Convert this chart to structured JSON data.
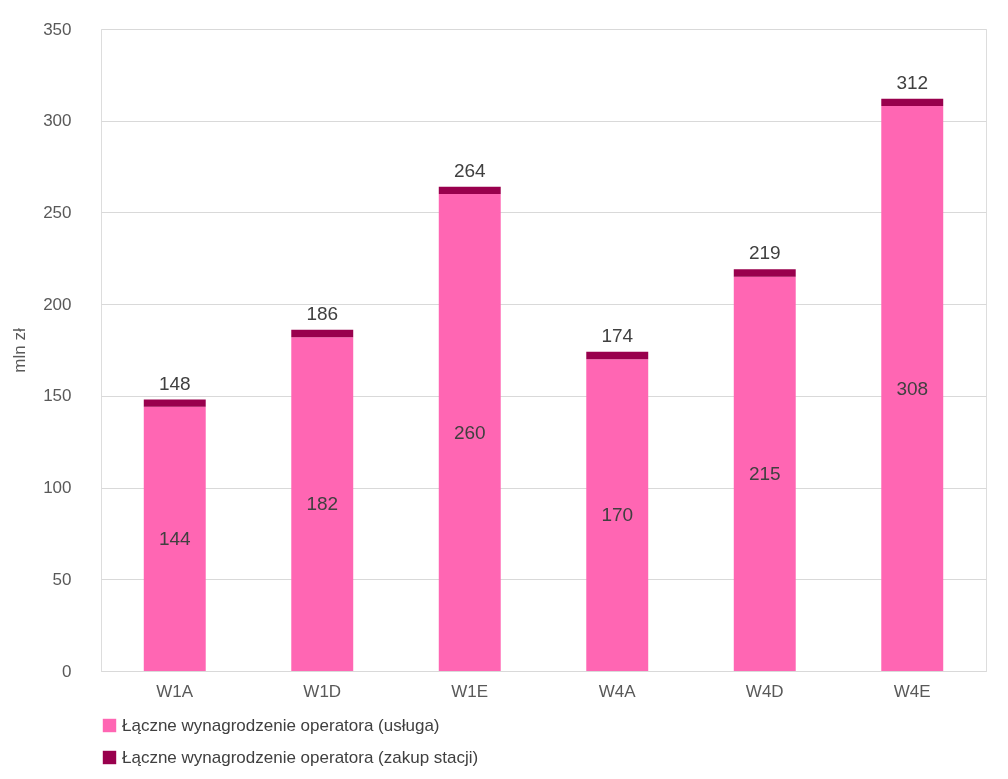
{
  "chart_data": {
    "type": "bar",
    "stacked": true,
    "ylabel": "mln zł",
    "categories": [
      "W1A",
      "W1D",
      "W1E",
      "W4A",
      "W4D",
      "W4E"
    ],
    "series": [
      {
        "name": "Łączne wynagrodzenie operatora (usługa)",
        "color": "#ff66b3",
        "values": [
          144,
          182,
          260,
          170,
          215,
          308
        ],
        "value_labels": [
          "144",
          "182",
          "260",
          "170",
          "215",
          "308"
        ]
      },
      {
        "name": "Łączne wynagrodzenie operatora (zakup stacji)",
        "color": "#99004d",
        "values": [
          4,
          4,
          4,
          4,
          4,
          4
        ]
      }
    ],
    "totals": [
      "148",
      "186",
      "264",
      "174",
      "219",
      "312"
    ],
    "ylim": [
      0,
      350
    ],
    "yticks": [
      0,
      50,
      100,
      150,
      200,
      250,
      300,
      350
    ],
    "grid": "y",
    "legend": "bottom"
  }
}
